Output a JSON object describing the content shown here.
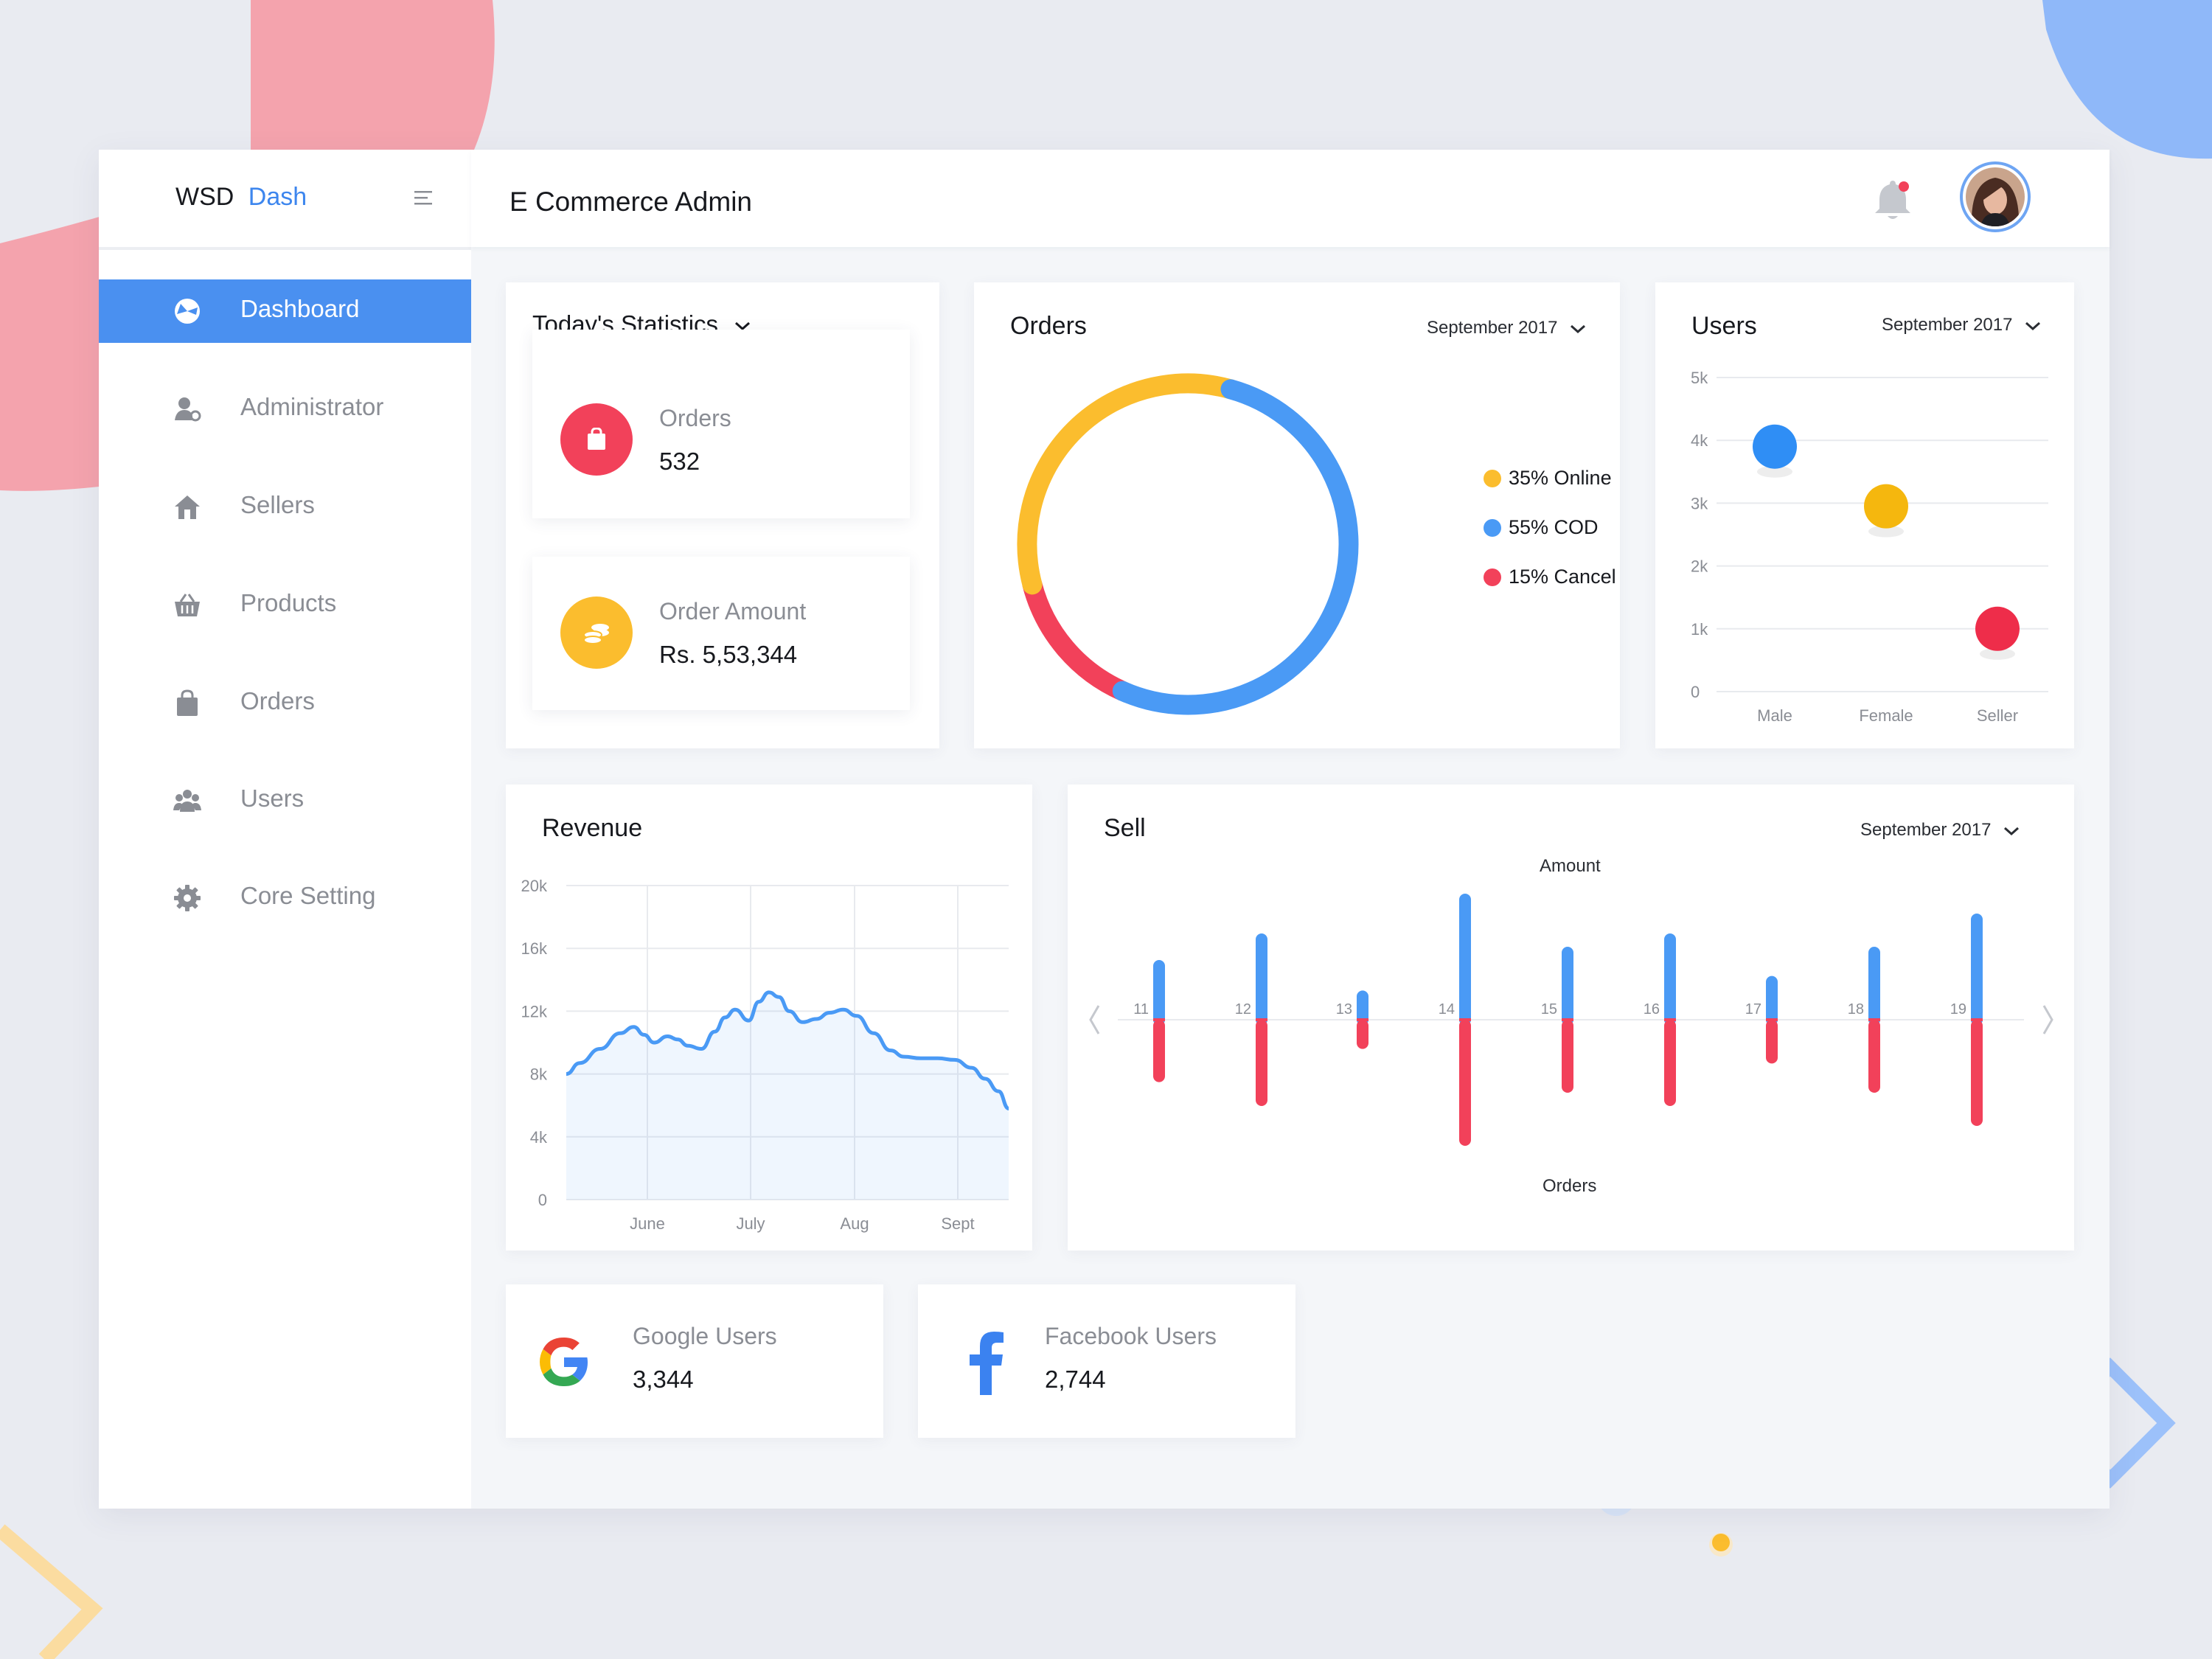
{
  "brand": {
    "part1": "WSD",
    "part2": "Dash"
  },
  "header": {
    "title": "E Commerce Admin"
  },
  "sidebar": {
    "items": [
      {
        "label": "Dashboard",
        "icon": "dashboard-icon",
        "active": true
      },
      {
        "label": "Administrator",
        "icon": "administrator-icon"
      },
      {
        "label": "Sellers",
        "icon": "sellers-icon"
      },
      {
        "label": "Products",
        "icon": "basket-icon"
      },
      {
        "label": "Orders",
        "icon": "shopping-bag-icon"
      },
      {
        "label": "Users",
        "icon": "users-icon"
      },
      {
        "label": "Core Setting",
        "icon": "gear-icon"
      }
    ]
  },
  "stats": {
    "title": "Today's Statistics",
    "orders": {
      "label": "Orders",
      "value": "532"
    },
    "amount": {
      "label": "Order Amount",
      "value": "Rs. 5,53,344"
    }
  },
  "orders_panel": {
    "title": "Orders",
    "period": "September 2017",
    "legend": [
      {
        "label": "35% Online",
        "color": "#fbbd2e"
      },
      {
        "label": "55% COD",
        "color": "#4a9af5"
      },
      {
        "label": "15% Cancel",
        "color": "#f2415a"
      }
    ]
  },
  "users_panel": {
    "title": "Users",
    "period": "September 2017"
  },
  "revenue_panel": {
    "title": "Revenue"
  },
  "sell_panel": {
    "title": "Sell",
    "period": "September 2017",
    "top_label": "Amount",
    "bottom_label": "Orders"
  },
  "social": {
    "google": {
      "label": "Google Users",
      "value": "3,344"
    },
    "facebook": {
      "label": "Facebook Users",
      "value": "2,744"
    }
  },
  "colors": {
    "accent": "#4a90f0",
    "blue": "#4a9af5",
    "red": "#f2415a",
    "yellow": "#fbbd2e"
  },
  "chart_data": [
    {
      "type": "pie",
      "title": "Orders",
      "categories": [
        "Online",
        "COD",
        "Cancel"
      ],
      "values": [
        35,
        55,
        15
      ],
      "colors": [
        "#fbbd2e",
        "#4a9af5",
        "#f2415a"
      ]
    },
    {
      "type": "scatter",
      "title": "Users",
      "categories": [
        "Male",
        "Female",
        "Seller"
      ],
      "values": [
        3900,
        2950,
        1000
      ],
      "colors": [
        "#2f8ef5",
        "#f5b70e",
        "#ee2d4a"
      ],
      "y_ticks": [
        "0",
        "1k",
        "2k",
        "3k",
        "4k",
        "5k"
      ],
      "ylim": [
        0,
        5000
      ],
      "grid": true
    },
    {
      "type": "area",
      "title": "Revenue",
      "x_ticks": [
        "June",
        "July",
        "Aug",
        "Sept"
      ],
      "y_ticks": [
        "0",
        "4k",
        "8k",
        "12k",
        "16k",
        "20k"
      ],
      "ylim": [
        0,
        20000
      ],
      "x": [
        0,
        0.4,
        1,
        1.6,
        2,
        2.3,
        2.6,
        3,
        3.3,
        3.6,
        4,
        4.4,
        4.7,
        5,
        5.4,
        5.7,
        6,
        6.3,
        6.6,
        7,
        7.4,
        7.8,
        8.2,
        8.6,
        9.1,
        9.6,
        10,
        10.5,
        11,
        11.5,
        12,
        12.4,
        12.8,
        13.1
      ],
      "values": [
        8000,
        8700,
        9600,
        10600,
        11000,
        10500,
        10000,
        10400,
        10200,
        9800,
        9600,
        10700,
        11600,
        12100,
        11400,
        12600,
        13200,
        12900,
        12000,
        11300,
        11500,
        11900,
        12100,
        11700,
        10600,
        9500,
        9100,
        9000,
        9000,
        8900,
        8400,
        7700,
        6900,
        5800
      ],
      "grid": true
    },
    {
      "type": "bar",
      "title": "Sell",
      "categories": [
        "11",
        "12",
        "13",
        "14",
        "15",
        "16",
        "17",
        "18",
        "19"
      ],
      "series": [
        {
          "name": "Amount",
          "values": [
            45,
            65,
            22,
            95,
            55,
            65,
            33,
            55,
            80
          ],
          "color": "#4a9af5"
        },
        {
          "name": "Orders",
          "values": [
            47,
            65,
            22,
            95,
            55,
            65,
            33,
            55,
            80
          ],
          "color": "#f2415a"
        }
      ],
      "ylim": [
        0,
        100
      ]
    }
  ]
}
